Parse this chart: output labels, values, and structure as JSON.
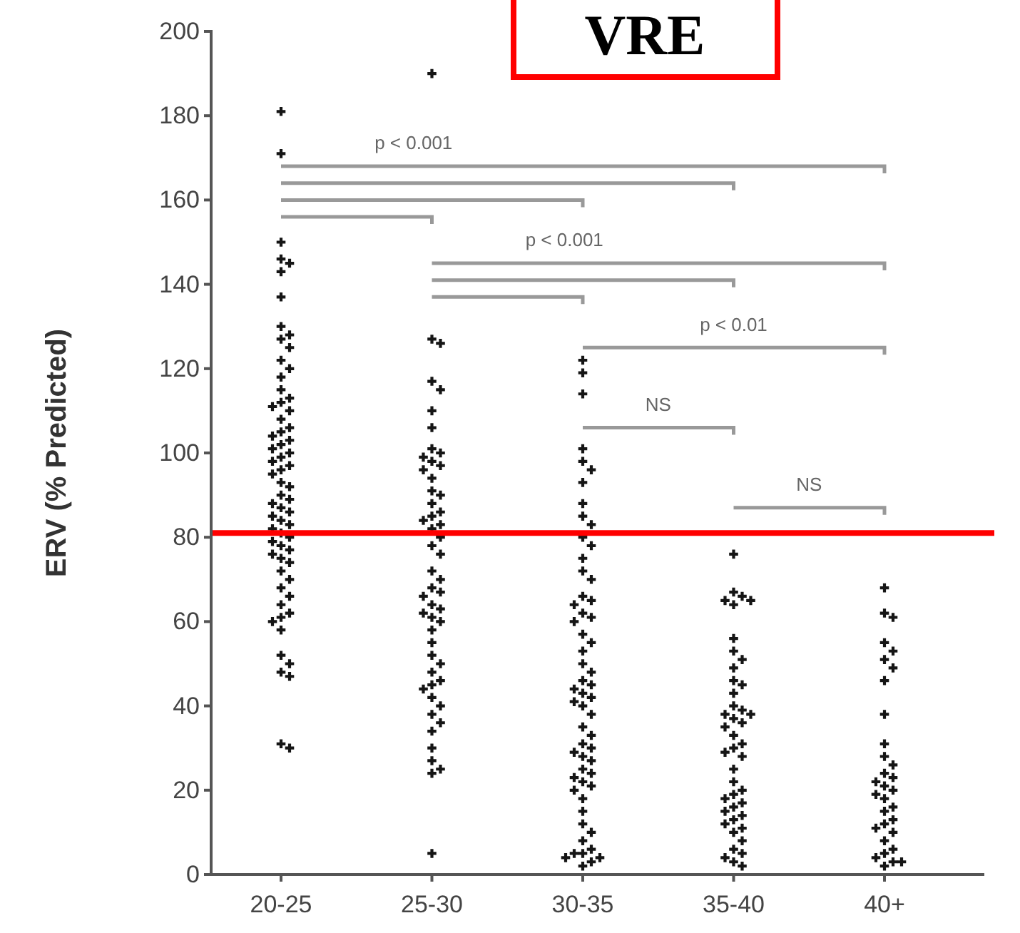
{
  "chart_data": {
    "type": "scatter",
    "title": "VRE",
    "ylabel": "ERV (% Predicted)",
    "categories": [
      "20-25",
      "25-30",
      "30-35",
      "35-40",
      "40+"
    ],
    "series": [
      {
        "color": "#151515",
        "x": [
          "20-25",
          "20-25",
          "20-25",
          "20-25",
          "20-25",
          "20-25",
          "20-25",
          "20-25",
          "20-25",
          "20-25",
          "20-25",
          "20-25",
          "20-25",
          "20-25",
          "20-25",
          "20-25",
          "20-25",
          "20-25",
          "20-25",
          "20-25",
          "20-25",
          "20-25",
          "20-25",
          "20-25",
          "20-25",
          "20-25",
          "20-25",
          "20-25",
          "20-25",
          "20-25",
          "20-25",
          "20-25",
          "20-25",
          "20-25",
          "20-25",
          "20-25",
          "20-25",
          "20-25",
          "20-25",
          "20-25",
          "20-25",
          "20-25",
          "20-25",
          "20-25",
          "20-25",
          "20-25",
          "20-25",
          "20-25",
          "20-25",
          "20-25",
          "20-25",
          "20-25",
          "20-25",
          "20-25",
          "20-25",
          "20-25",
          "20-25",
          "20-25",
          "20-25",
          "20-25",
          "20-25",
          "20-25",
          "20-25",
          "20-25",
          "20-25",
          "20-25",
          "25-30",
          "25-30",
          "25-30",
          "25-30",
          "25-30",
          "25-30",
          "25-30",
          "25-30",
          "25-30",
          "25-30",
          "25-30",
          "25-30",
          "25-30",
          "25-30",
          "25-30",
          "25-30",
          "25-30",
          "25-30",
          "25-30",
          "25-30",
          "25-30",
          "25-30",
          "25-30",
          "25-30",
          "25-30",
          "25-30",
          "25-30",
          "25-30",
          "25-30",
          "25-30",
          "25-30",
          "25-30",
          "25-30",
          "25-30",
          "25-30",
          "25-30",
          "25-30",
          "25-30",
          "25-30",
          "25-30",
          "25-30",
          "25-30",
          "25-30",
          "25-30",
          "25-30",
          "25-30",
          "25-30",
          "25-30",
          "25-30",
          "25-30",
          "25-30",
          "25-30",
          "25-30",
          "30-35",
          "30-35",
          "30-35",
          "30-35",
          "30-35",
          "30-35",
          "30-35",
          "30-35",
          "30-35",
          "30-35",
          "30-35",
          "30-35",
          "30-35",
          "30-35",
          "30-35",
          "30-35",
          "30-35",
          "30-35",
          "30-35",
          "30-35",
          "30-35",
          "30-35",
          "30-35",
          "30-35",
          "30-35",
          "30-35",
          "30-35",
          "30-35",
          "30-35",
          "30-35",
          "30-35",
          "30-35",
          "30-35",
          "30-35",
          "30-35",
          "30-35",
          "30-35",
          "30-35",
          "30-35",
          "30-35",
          "30-35",
          "30-35",
          "30-35",
          "30-35",
          "30-35",
          "30-35",
          "30-35",
          "30-35",
          "30-35",
          "30-35",
          "30-35",
          "30-35",
          "30-35",
          "30-35",
          "30-35",
          "30-35",
          "30-35",
          "30-35",
          "30-35",
          "35-40",
          "35-40",
          "35-40",
          "35-40",
          "35-40",
          "35-40",
          "35-40",
          "35-40",
          "35-40",
          "35-40",
          "35-40",
          "35-40",
          "35-40",
          "35-40",
          "35-40",
          "35-40",
          "35-40",
          "35-40",
          "35-40",
          "35-40",
          "35-40",
          "35-40",
          "35-40",
          "35-40",
          "35-40",
          "35-40",
          "35-40",
          "35-40",
          "35-40",
          "35-40",
          "35-40",
          "35-40",
          "35-40",
          "35-40",
          "35-40",
          "35-40",
          "35-40",
          "35-40",
          "35-40",
          "35-40",
          "35-40",
          "35-40",
          "35-40",
          "35-40",
          "40+",
          "40+",
          "40+",
          "40+",
          "40+",
          "40+",
          "40+",
          "40+",
          "40+",
          "40+",
          "40+",
          "40+",
          "40+",
          "40+",
          "40+",
          "40+",
          "40+",
          "40+",
          "40+",
          "40+",
          "40+",
          "40+",
          "40+",
          "40+",
          "40+",
          "40+",
          "40+",
          "40+",
          "40+",
          "40+",
          "40+",
          "40+"
        ],
        "values": [
          181,
          171,
          150,
          146,
          145,
          143,
          137,
          130,
          128,
          127,
          125,
          122,
          120,
          118,
          115,
          113,
          112,
          111,
          110,
          108,
          106,
          105,
          104,
          103,
          102,
          101,
          100,
          99,
          98,
          97,
          96,
          95,
          93,
          92,
          90,
          89,
          88,
          87,
          86,
          85,
          84,
          83,
          82,
          81,
          80,
          79,
          78,
          77,
          76,
          75,
          74,
          72,
          70,
          68,
          66,
          64,
          62,
          61,
          60,
          58,
          52,
          50,
          48,
          47,
          31,
          30,
          190,
          127,
          126,
          117,
          115,
          110,
          106,
          101,
          100,
          99,
          98,
          97,
          96,
          94,
          91,
          90,
          88,
          86,
          85,
          84,
          83,
          82,
          80,
          78,
          76,
          72,
          70,
          68,
          67,
          66,
          64,
          63,
          62,
          61,
          60,
          58,
          55,
          52,
          50,
          48,
          46,
          45,
          44,
          42,
          40,
          38,
          36,
          34,
          30,
          27,
          25,
          24,
          5,
          122,
          119,
          114,
          101,
          98,
          96,
          93,
          88,
          85,
          83,
          80,
          78,
          75,
          72,
          70,
          66,
          65,
          64,
          62,
          61,
          60,
          57,
          55,
          53,
          50,
          48,
          46,
          45,
          44,
          43,
          42,
          41,
          40,
          38,
          35,
          33,
          31,
          30,
          29,
          28,
          27,
          25,
          24,
          23,
          22,
          21,
          20,
          18,
          15,
          12,
          10,
          8,
          6,
          5,
          5,
          4,
          4,
          3,
          2,
          76,
          67,
          66,
          65,
          65,
          64,
          56,
          53,
          51,
          49,
          46,
          45,
          43,
          40,
          39,
          38,
          38,
          37,
          36,
          35,
          33,
          31,
          30,
          29,
          28,
          25,
          22,
          20,
          19,
          18,
          17,
          16,
          15,
          14,
          13,
          12,
          11,
          10,
          8,
          6,
          5,
          4,
          3,
          2,
          68,
          62,
          61,
          55,
          53,
          51,
          49,
          46,
          38,
          31,
          28,
          26,
          24,
          23,
          22,
          21,
          20,
          19,
          18,
          16,
          15,
          13,
          12,
          11,
          10,
          8,
          6,
          5,
          4,
          3,
          3,
          2
        ]
      }
    ],
    "ylim": [
      0,
      200
    ],
    "yticks": [
      0,
      20,
      40,
      60,
      80,
      100,
      120,
      140,
      160,
      180,
      200
    ],
    "marker": "cross",
    "grid": false,
    "ref_lines": [
      {
        "axis": "y",
        "value": 81,
        "color": "#ff0000",
        "line_style": "solid"
      }
    ],
    "annotations": [
      "p < 0.001",
      "p < 0.001",
      "p < 0.01",
      "NS",
      "NS"
    ]
  }
}
